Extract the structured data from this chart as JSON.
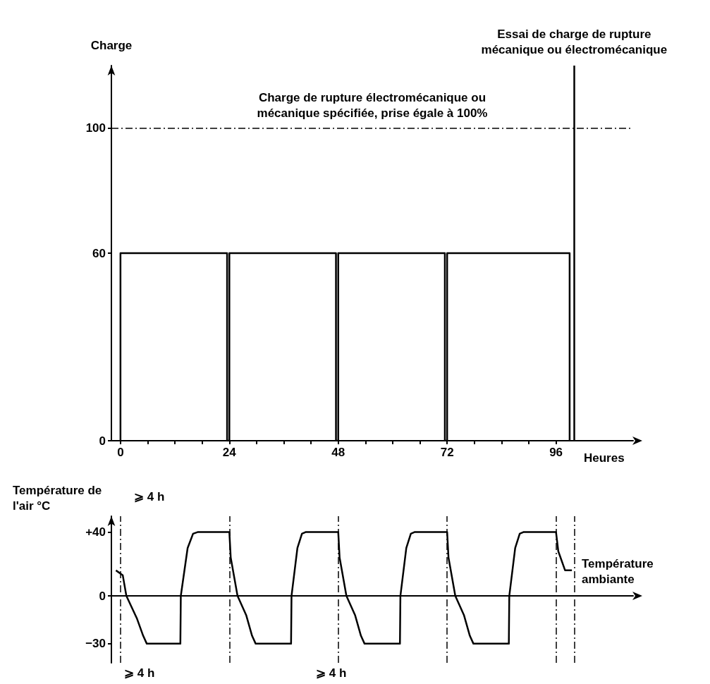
{
  "chart_data": [
    {
      "type": "line",
      "ylabel": "Charge",
      "xlabel": "Heures",
      "xlim": [
        -2,
        113
      ],
      "xticks": [
        0,
        {
          "value": 6,
          "label": null
        },
        {
          "value": 12,
          "label": null
        },
        {
          "value": 18,
          "label": null
        },
        24,
        {
          "value": 30,
          "label": null
        },
        {
          "value": 36,
          "label": null
        },
        {
          "value": 42,
          "label": null
        },
        48,
        {
          "value": 54,
          "label": null
        },
        {
          "value": 60,
          "label": null
        },
        {
          "value": 66,
          "label": null
        },
        72,
        {
          "value": 78,
          "label": null
        },
        {
          "value": 84,
          "label": null
        },
        {
          "value": 90,
          "label": null
        },
        96
      ],
      "ylim": [
        0,
        120
      ],
      "yticks": [
        0,
        60,
        100
      ],
      "x": [
        0,
        0,
        23.5,
        23.5,
        24,
        24,
        47.5,
        47.5,
        48,
        48,
        71.5,
        71.5,
        72,
        72,
        99,
        99
      ],
      "series": [
        {
          "color": "#000000",
          "values": [
            0,
            60,
            60,
            0,
            0,
            60,
            60,
            0,
            0,
            60,
            60,
            0,
            0,
            60,
            60,
            0
          ]
        }
      ],
      "ref_lines": [
        {
          "axis": "y",
          "value": 100,
          "label": "Charge de rupture électromécanique ou\nmécanique spécifiée, prise égale à 100%",
          "line_style": "dashed",
          "color": "#000000"
        },
        {
          "axis": "x",
          "value": 100,
          "label": "Essai de charge de rupture\nmécanique ou électromécanique",
          "line_style": "solid",
          "color": "#000000"
        }
      ],
      "grid": false,
      "marker": "none",
      "line_style": "solid"
    },
    {
      "type": "line",
      "ylabel": "Température de l'air °C",
      "xlim": [
        -2,
        113
      ],
      "ylim": [
        -42,
        50
      ],
      "yticks": [
        {
          "value": 40,
          "label": "+40"
        },
        0,
        {
          "value": -30,
          "label": "−30"
        }
      ],
      "tick_labels": "y",
      "x": [
        -1,
        0.5,
        1.3,
        3.6,
        5,
        5.8,
        13.2,
        13.3,
        14.8,
        16,
        17,
        24,
        24.3,
        25.8,
        27.7,
        29,
        29.8,
        37.6,
        37.7,
        39,
        40,
        40.8,
        48,
        48.3,
        49.8,
        51.7,
        53,
        53.8,
        61.6,
        61.7,
        63,
        64,
        64.8,
        72,
        72.3,
        73.8,
        75.7,
        77,
        77.8,
        85.6,
        85.7,
        87,
        88,
        88.8,
        96,
        96.5,
        98,
        99.5
      ],
      "series": [
        {
          "color": "#000000",
          "values": [
            16,
            13,
            0,
            -14,
            -25,
            -30,
            -30,
            0,
            30,
            39,
            40,
            40,
            24,
            0,
            -12,
            -25,
            -30,
            -30,
            0,
            30,
            39,
            40,
            40,
            24,
            0,
            -12,
            -25,
            -30,
            -30,
            0,
            30,
            39,
            40,
            40,
            24,
            0,
            -12,
            -25,
            -30,
            -30,
            0,
            30,
            39,
            40,
            40,
            28,
            16,
            16
          ]
        }
      ],
      "ref_lines": [
        {
          "axis": "x",
          "value": 0,
          "line_style": "dashed",
          "color": "#000000"
        },
        {
          "axis": "x",
          "value": 24,
          "line_style": "dashed",
          "color": "#000000"
        },
        {
          "axis": "x",
          "value": 48,
          "line_style": "dashed",
          "color": "#000000"
        },
        {
          "axis": "x",
          "value": 72,
          "line_style": "dashed",
          "color": "#000000"
        },
        {
          "axis": "x",
          "value": 96,
          "line_style": "dashed",
          "color": "#000000"
        },
        {
          "axis": "x",
          "value": 100,
          "line_style": "dashed",
          "color": "#000000"
        }
      ],
      "annotations": [
        "⩾ 4 h",
        "⩾ 4 h",
        "⩾ 4 h",
        "Température\nambiante"
      ],
      "grid": false,
      "marker": "none",
      "line_style": "solid"
    }
  ]
}
